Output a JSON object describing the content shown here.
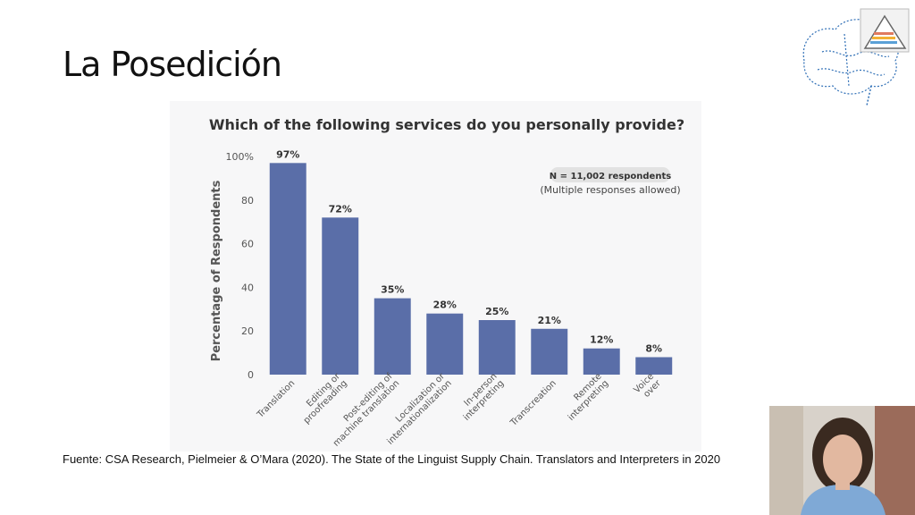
{
  "slide": {
    "title": "La Posedición",
    "source": "Fuente: CSA Research, Pielmeier & O’Mara (2020). The State of the Linguist Supply Chain. Translators and Interpreters in 2020"
  },
  "colors": {
    "bar": "#5a6ea8",
    "title_text": "#333333",
    "axis_text": "#555555"
  },
  "chart_data": {
    "type": "bar",
    "title": "Which of the following services do you personally provide?",
    "ylabel": "Percentage of Respondents",
    "xlabel": "",
    "ylim": [
      0,
      100
    ],
    "yticks": [
      "0",
      "20",
      "40",
      "60",
      "80",
      "100%"
    ],
    "categories": [
      [
        "Translation"
      ],
      [
        "Editing or",
        "proofreading"
      ],
      [
        "Post-editing of",
        "machine translation"
      ],
      [
        "Localization or",
        "internationalization"
      ],
      [
        "In-person",
        "interpreting"
      ],
      [
        "Transcreation"
      ],
      [
        "Remote",
        "interpreting"
      ],
      [
        "Voice",
        "over"
      ]
    ],
    "values": [
      97,
      72,
      35,
      28,
      25,
      21,
      12,
      8
    ],
    "data_labels": [
      "97%",
      "72%",
      "35%",
      "28%",
      "25%",
      "21%",
      "12%",
      "8%"
    ],
    "grid": false,
    "annotation": {
      "badge": "N = 11,002 respondents",
      "note": "(Multiple responses allowed)"
    }
  }
}
